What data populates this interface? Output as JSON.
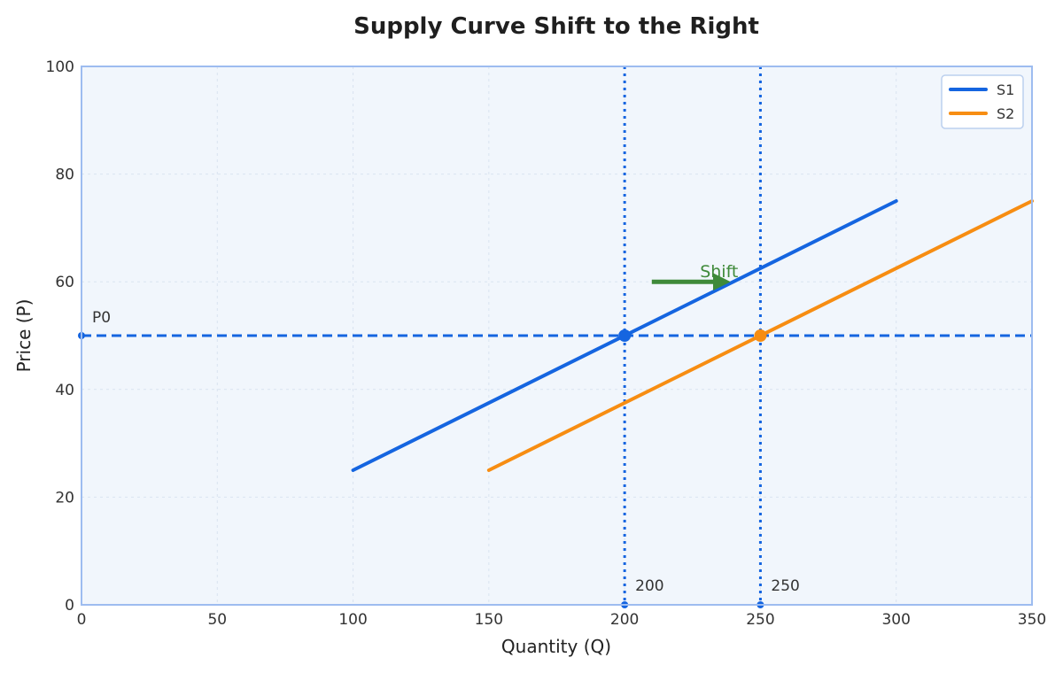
{
  "chart_data": {
    "type": "line",
    "title": "Supply Curve Shift to the Right",
    "xlabel": "Quantity (Q)",
    "ylabel": "Price (P)",
    "xlim": [
      0,
      350
    ],
    "ylim": [
      0,
      100
    ],
    "xticks": [
      0,
      50,
      100,
      150,
      200,
      250,
      300,
      350
    ],
    "yticks": [
      0,
      20,
      40,
      60,
      80,
      100
    ],
    "grid": true,
    "legend_position": "top-right",
    "series": [
      {
        "name": "S1",
        "color": "#1565e0",
        "x": [
          100,
          300
        ],
        "y": [
          25,
          75
        ]
      },
      {
        "name": "S2",
        "color": "#f78d12",
        "x": [
          150,
          350
        ],
        "y": [
          25,
          75
        ]
      }
    ],
    "reference_lines": {
      "price": {
        "value": 50,
        "label": "P0",
        "color": "#1565e0"
      },
      "quantities": [
        {
          "value": 200,
          "label": "200",
          "color": "#1565e0"
        },
        {
          "value": 250,
          "label": "250",
          "color": "#1565e0"
        }
      ]
    },
    "equilibrium_points": [
      {
        "x": 200,
        "y": 50,
        "color": "#1565e0"
      },
      {
        "x": 250,
        "y": 50,
        "color": "#f78d12"
      }
    ],
    "shift_arrow": {
      "from": [
        210,
        60
      ],
      "to": [
        240,
        60
      ],
      "label": "Shift",
      "color": "#3f8a3a"
    },
    "colors": {
      "plot_background": "#f1f6fc",
      "frame": "#9dbcf0"
    }
  }
}
